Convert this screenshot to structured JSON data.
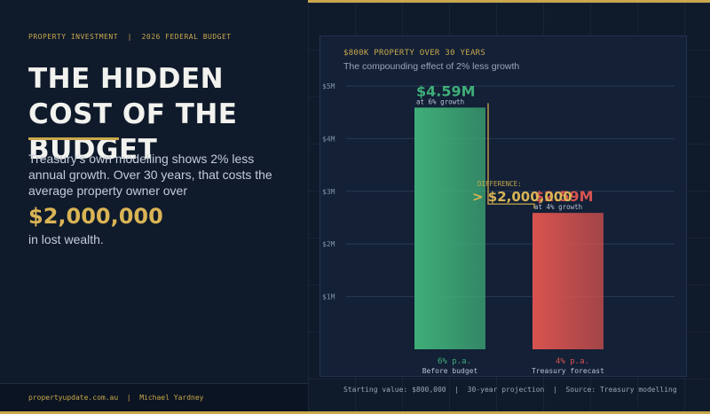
{
  "eyebrow": "PROPERTY INVESTMENT  |  2026 FEDERAL BUDGET",
  "headline": "THE HIDDEN COST OF THE BUDGET",
  "body_text": "Treasury's own modelling shows 2% less annual growth. Over 30 years, that costs the average property owner over",
  "highlight_amount": "$2,000,000",
  "after_text": "in lost wealth.",
  "footer": {
    "text": "propertyupdate.com.au  |  Michael Yardney"
  },
  "colors": {
    "gold": "#c9a84c",
    "green": "#3fae78",
    "red": "#d9534f",
    "background": "#0f1a2b"
  },
  "chart_data": {
    "type": "bar",
    "title": "$800K PROPERTY OVER 30 YEARS",
    "subtitle": "The compounding effect of 2% less growth",
    "ylim": [
      0,
      5
    ],
    "y_ticks": [
      1,
      2,
      3,
      4,
      5
    ],
    "y_tick_labels": [
      "$1M",
      "$2M",
      "$3M",
      "$4M",
      "$5M"
    ],
    "grid": true,
    "bars": [
      {
        "value": 4.59,
        "value_label": "$4.59M",
        "sub_label": "at 6% growth",
        "rate_label": "6% p.a.",
        "category": "Before budget",
        "color": "#3fae78"
      },
      {
        "value": 2.59,
        "value_label": "$2.59M",
        "sub_label": "at 4% growth",
        "rate_label": "4% p.a.",
        "category": "Treasury forecast",
        "color": "#d9534f"
      }
    ],
    "annotation": {
      "label": "DIFFERENCE:",
      "value": "> $2,000,000"
    },
    "footer_note": "Starting value: $800,000  |  30-year projection  |  Source: Treasury modelling"
  }
}
